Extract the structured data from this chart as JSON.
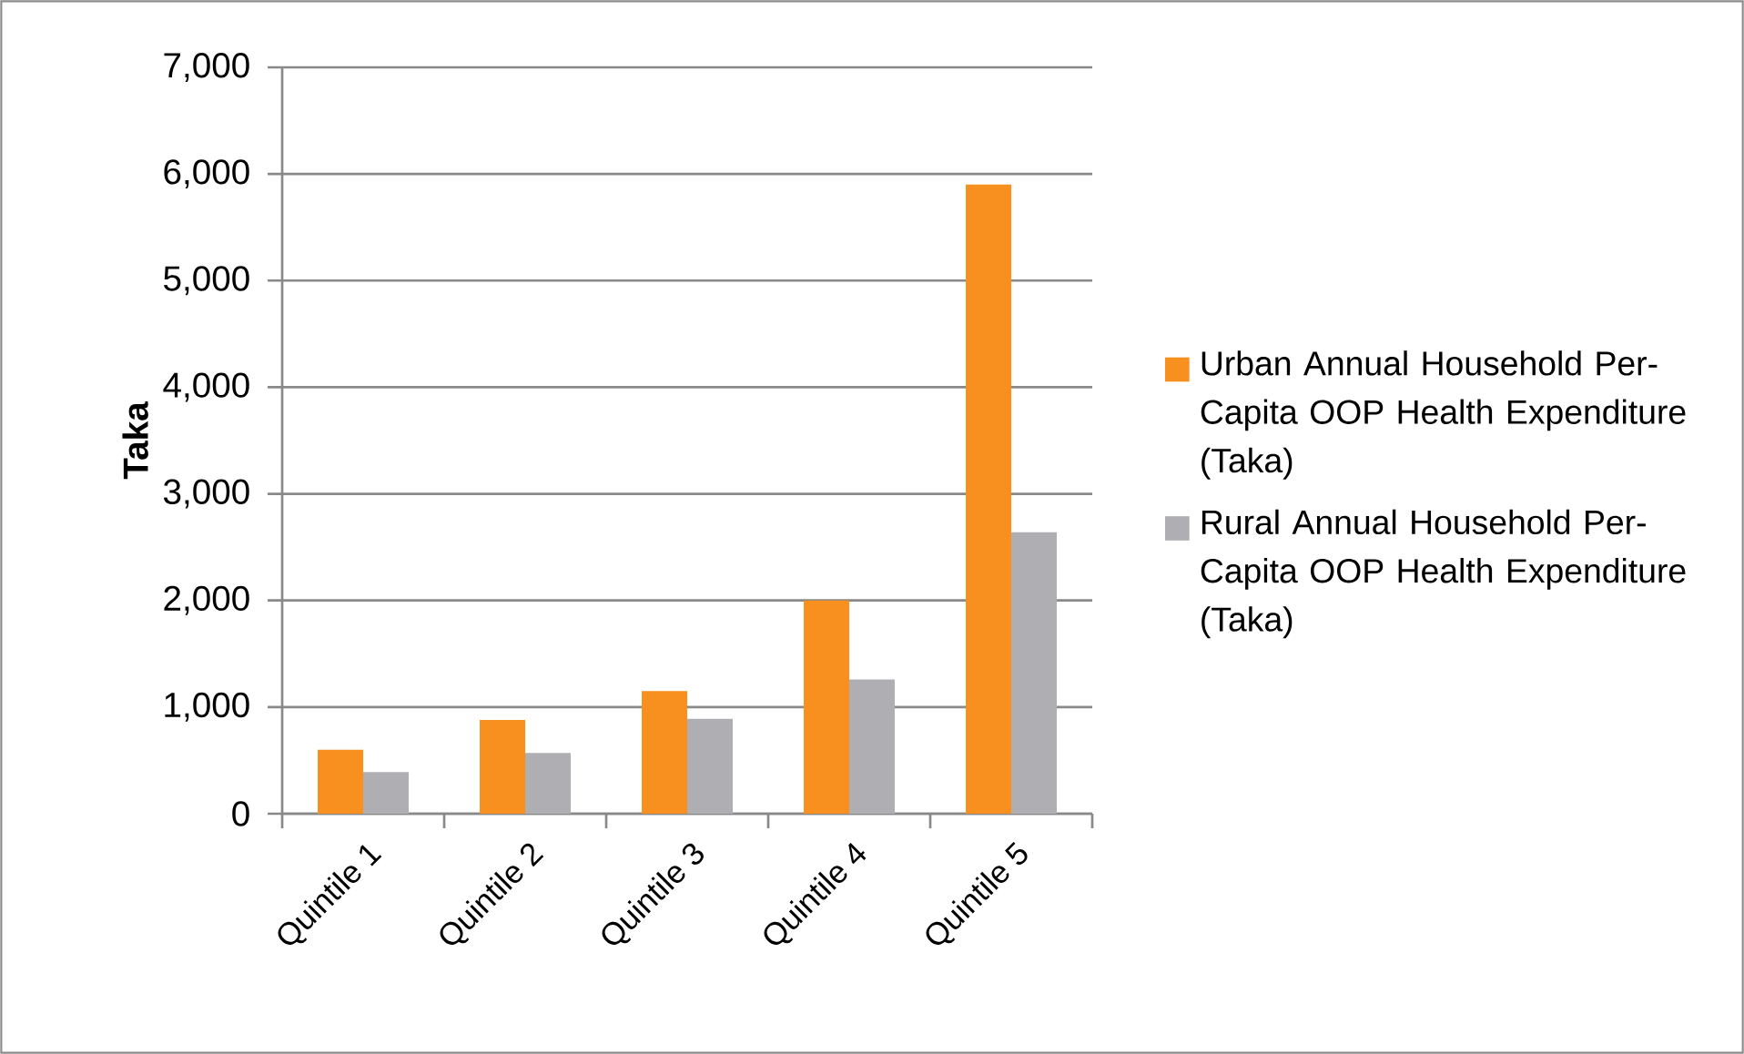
{
  "chart_data": {
    "type": "bar",
    "ylabel": "Taka",
    "categories": [
      "Quintile 1",
      "Quintile 2",
      "Quintile 3",
      "Quintile 4",
      "Quintile 5"
    ],
    "series": [
      {
        "name": "Urban Annual Household Per-Capita OOP Health Expenditure (Taka)",
        "color": "#f7901e",
        "values": [
          600,
          880,
          1150,
          2000,
          5900
        ]
      },
      {
        "name": "Rural Annual Household Per-Capita OOP Health Expenditure (Taka)",
        "color": "#afafb3",
        "values": [
          390,
          570,
          890,
          1260,
          2640
        ]
      }
    ],
    "ylim": [
      0,
      7000
    ],
    "yticks": [
      0,
      {
        "value": 1000,
        "label": "1,000"
      },
      {
        "value": 2000,
        "label": "2,000"
      },
      {
        "value": 3000,
        "label": "3,000"
      },
      {
        "value": 4000,
        "label": "4,000"
      },
      {
        "value": 5000,
        "label": "5,000"
      },
      {
        "value": 6000,
        "label": "6,000"
      },
      {
        "value": 7000,
        "label": "7,000"
      }
    ],
    "grid": "y",
    "legend": "right"
  }
}
